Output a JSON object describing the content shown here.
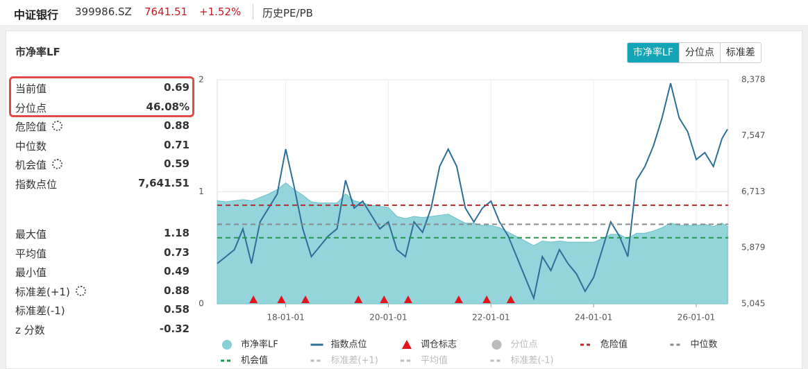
{
  "header": {
    "name": "中证银行",
    "code": "399986.SZ",
    "price": "7641.51",
    "change": "+1.52%",
    "tab": "历史PE/PB"
  },
  "panel": {
    "title": "市净率LF",
    "tabs": [
      "市净率LF",
      "分位点",
      "标准差"
    ],
    "active_tab": 0
  },
  "stats": {
    "current": [
      [
        "当前值",
        "0.69"
      ],
      [
        "分位点",
        "46.08%"
      ]
    ],
    "levels": [
      [
        "危险值",
        "0.88"
      ],
      [
        "中位数",
        "0.71"
      ],
      [
        "机会值",
        "0.59"
      ],
      [
        "指数点位",
        "7,641.51"
      ]
    ],
    "summary": [
      [
        "最大值",
        "1.18"
      ],
      [
        "平均值",
        "0.73"
      ],
      [
        "最小值",
        "0.49"
      ],
      [
        "标准差(+1)",
        "0.88"
      ],
      [
        "标准差(-1)",
        "0.58"
      ],
      [
        "z 分数",
        "-0.32"
      ]
    ]
  },
  "chart_data": {
    "type": "line",
    "x": [
      "16-09-01",
      "16-11-01",
      "17-01-01",
      "17-03-01",
      "17-05-01",
      "17-07-01",
      "17-09-01",
      "17-11-01",
      "18-01-01",
      "18-03-01",
      "18-05-01",
      "18-07-01",
      "18-09-01",
      "18-11-01",
      "19-01-01",
      "19-03-01",
      "19-05-01",
      "19-07-01",
      "19-09-01",
      "19-11-01",
      "20-01-01",
      "20-03-01",
      "20-05-01",
      "20-07-01",
      "20-09-01",
      "20-11-01",
      "21-01-01",
      "21-03-01",
      "21-05-01",
      "21-07-01",
      "21-09-01",
      "21-11-01",
      "22-01-01",
      "22-03-01",
      "22-05-01",
      "22-07-01",
      "22-09-01",
      "22-11-01",
      "23-01-01",
      "23-03-01",
      "23-05-01",
      "23-07-01",
      "23-09-01",
      "23-11-01",
      "24-01-01",
      "24-03-01",
      "24-05-01",
      "24-07-01",
      "24-09-01",
      "24-11-01",
      "25-01-01",
      "25-03-01",
      "25-05-01",
      "25-07-01",
      "25-09-01",
      "25-11-01",
      "26-01-01",
      "26-03-01",
      "26-05-01",
      "26-07-01",
      "26-08-10"
    ],
    "xlim": [
      "16-09-01",
      "26-08-15"
    ],
    "xticks": [
      "18-01-01",
      "20-01-01",
      "22-01-01",
      "24-01-01",
      "26-01-01"
    ],
    "ylim": [
      0,
      2
    ],
    "yticks": [
      0,
      1,
      2
    ],
    "y2lim": [
      5045,
      8378
    ],
    "y2ticks": [
      {
        "value": 5045,
        "label": "5,045"
      },
      {
        "value": 5879,
        "label": "5,879"
      },
      {
        "value": 6713,
        "label": "6,713"
      },
      {
        "value": 7547,
        "label": "7,547"
      },
      {
        "value": 8378,
        "label": "8,378"
      }
    ],
    "grid": true,
    "series": [
      {
        "name": "市净率LF",
        "style": "area",
        "color": "#88cfd7",
        "values": [
          0.92,
          0.91,
          0.92,
          0.93,
          0.92,
          0.95,
          0.98,
          1.02,
          1.08,
          1.02,
          0.97,
          0.91,
          0.9,
          0.9,
          0.9,
          0.98,
          0.92,
          0.9,
          0.88,
          0.87,
          0.86,
          0.78,
          0.76,
          0.78,
          0.77,
          0.78,
          0.79,
          0.8,
          0.76,
          0.72,
          0.72,
          0.7,
          0.7,
          0.68,
          0.64,
          0.6,
          0.56,
          0.52,
          0.56,
          0.55,
          0.56,
          0.55,
          0.55,
          0.55,
          0.55,
          0.58,
          0.62,
          0.62,
          0.58,
          0.63,
          0.63,
          0.65,
          0.68,
          0.72,
          0.7,
          0.7,
          0.7,
          0.71,
          0.69,
          0.72,
          0.69
        ]
      },
      {
        "name": "指数点位",
        "style": "line",
        "color": "#2b6f96",
        "axis": "y2",
        "values": [
          5644,
          5747,
          5850,
          6160,
          5644,
          6263,
          6469,
          6676,
          7346,
          6779,
          6160,
          5747,
          5902,
          6056,
          6160,
          6882,
          6469,
          6572,
          6366,
          6160,
          6263,
          5850,
          5747,
          6263,
          6108,
          6469,
          7088,
          7346,
          7088,
          6469,
          6263,
          6469,
          6572,
          6263,
          6056,
          5747,
          5437,
          5128,
          5747,
          5540,
          5850,
          5644,
          5489,
          5231,
          5437,
          5850,
          6263,
          6056,
          5747,
          6882,
          7088,
          7397,
          7811,
          8327,
          7811,
          7604,
          7191,
          7295,
          7088,
          7501,
          7641.51
        ]
      }
    ],
    "markers": {
      "name": "调仓标志",
      "color": "#e3141b",
      "x": [
        "17-05-15",
        "17-12-01",
        "18-05-20",
        "19-06-01",
        "19-12-01",
        "20-05-20",
        "21-05-15",
        "21-12-01",
        "22-05-20"
      ]
    },
    "percentile": {
      "name": "分位点",
      "visible": false
    },
    "reference_lines": [
      {
        "name": "危险值",
        "value": 0.88,
        "color": "#c0282b",
        "visible": true
      },
      {
        "name": "中位数",
        "value": 0.71,
        "color": "#8a8a8a",
        "visible": true
      },
      {
        "name": "机会值",
        "value": 0.59,
        "color": "#1e9a4a",
        "visible": true
      },
      {
        "name": "标准差(+1)",
        "value": 0.88,
        "color": "#bbbbbb",
        "visible": false
      },
      {
        "name": "平均值",
        "value": 0.73,
        "color": "#bbbbbb",
        "visible": false
      },
      {
        "name": "标准差(-1)",
        "value": 0.58,
        "color": "#bbbbbb",
        "visible": false
      }
    ],
    "inactive_color": "#bbbbbb"
  }
}
